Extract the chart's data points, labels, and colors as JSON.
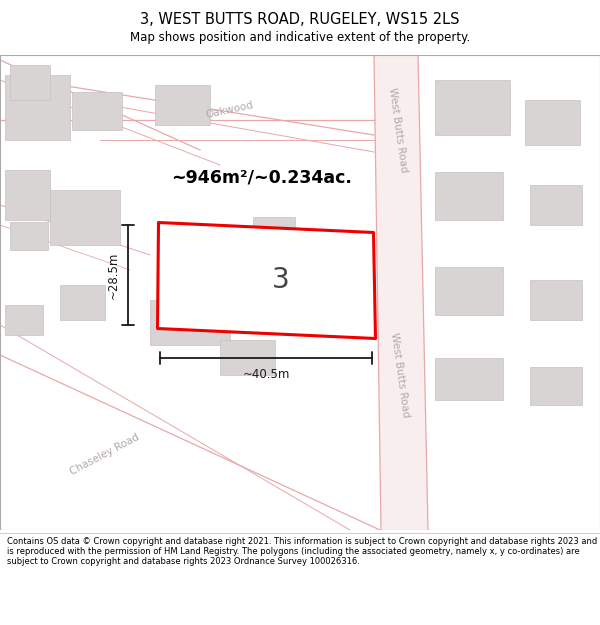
{
  "title": "3, WEST BUTTS ROAD, RUGELEY, WS15 2LS",
  "subtitle": "Map shows position and indicative extent of the property.",
  "footer": "Contains OS data © Crown copyright and database right 2021. This information is subject to Crown copyright and database rights 2023 and is reproduced with the permission of HM Land Registry. The polygons (including the associated geometry, namely x, y co-ordinates) are subject to Crown copyright and database rights 2023 Ordnance Survey 100026316.",
  "area_label": "~946m²/~0.234ac.",
  "plot_number": "3",
  "dim_width": "~40.5m",
  "dim_height": "~28.5m",
  "road_label_wbr_top": "West Butts Road",
  "road_label_wbr_bot": "West Butts Road",
  "road_label_oakwood": "Oakwood",
  "road_label_chaseley": "Chaseley Road",
  "map_bg": "#ffffff",
  "road_fill": "#f9eeee",
  "road_line_color": "#e8a8a8",
  "building_fill": "#d9d4d4",
  "building_edge": "#c8c0c0",
  "plot_edge": "#ee0000",
  "footer_text_color": "#000000",
  "title_color": "#000000",
  "label_color": "#b0a8a8",
  "dim_color": "#1a1a1a"
}
